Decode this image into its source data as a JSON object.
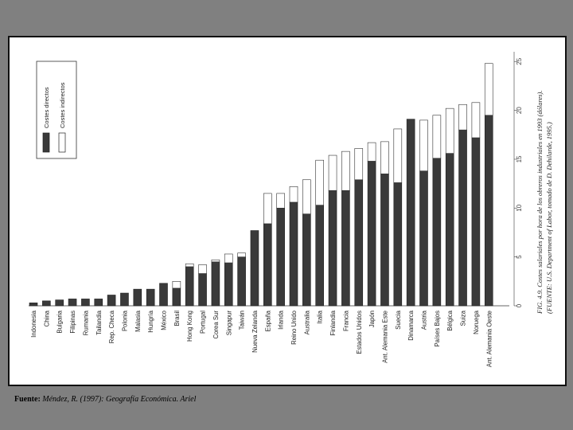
{
  "source": {
    "label": "Fuente:",
    "text": " Méndez, R. (1997): Geografía Económica. Ariel"
  },
  "chart_data": {
    "type": "bar",
    "stacked": true,
    "caption": "FIG. 4.9.  Costes salariales por hora de los obreros industriales en 1993 (dólares). (FUENTE: U.S. Department of Labor, tomado de D. Dehilarde, 1995.)",
    "categories": [
      "Indonesia",
      "China",
      "Bulgaria",
      "Filipinas",
      "Rumania",
      "Tailandia",
      "Rep. Checa",
      "Polonia",
      "Malasia",
      "Hungría",
      "México",
      "Brasil",
      "Hong Kong",
      "Portugal",
      "Corea Sur",
      "Singapur",
      "Taiwán",
      "Nueva Zelanda",
      "España",
      "Irlanda",
      "Reino Unido",
      "Australia",
      "Italia",
      "Finlandia",
      "Francia",
      "Estados Unidos",
      "Japón",
      "Ant. Alemania Este",
      "Suecia",
      "Dinamarca",
      "Austria",
      "Países Bajos",
      "Bélgica",
      "Suiza",
      "Noruega",
      "Ant. Alemania Oeste"
    ],
    "series": [
      {
        "name": "Costes directos",
        "color": "#3a3a3a",
        "values": [
          0.3,
          0.5,
          0.6,
          0.7,
          0.7,
          0.7,
          1.1,
          1.3,
          1.7,
          1.7,
          2.3,
          1.8,
          4.0,
          3.3,
          4.5,
          4.4,
          5.0,
          7.7,
          8.4,
          10.0,
          10.6,
          9.4,
          10.3,
          11.8,
          11.8,
          12.9,
          14.8,
          13.5,
          12.6,
          19.1,
          13.8,
          15.1,
          15.6,
          18.0,
          17.2,
          19.5
        ]
      },
      {
        "name": "Costes indirectos",
        "color": "#ffffff",
        "values": [
          0.0,
          0.0,
          0.0,
          0.0,
          0.0,
          0.0,
          0.0,
          0.0,
          0.0,
          0.0,
          0.0,
          0.7,
          0.3,
          0.9,
          0.2,
          0.9,
          0.4,
          0.0,
          3.1,
          1.5,
          1.6,
          3.5,
          4.6,
          3.6,
          4.0,
          3.2,
          1.9,
          3.3,
          5.5,
          0.0,
          5.2,
          4.4,
          4.6,
          2.6,
          3.6,
          5.3
        ]
      }
    ],
    "yticks": [
      0,
      5,
      10,
      15,
      20,
      25
    ],
    "ylim": [
      0,
      26
    ],
    "legend_position": "top-left"
  }
}
